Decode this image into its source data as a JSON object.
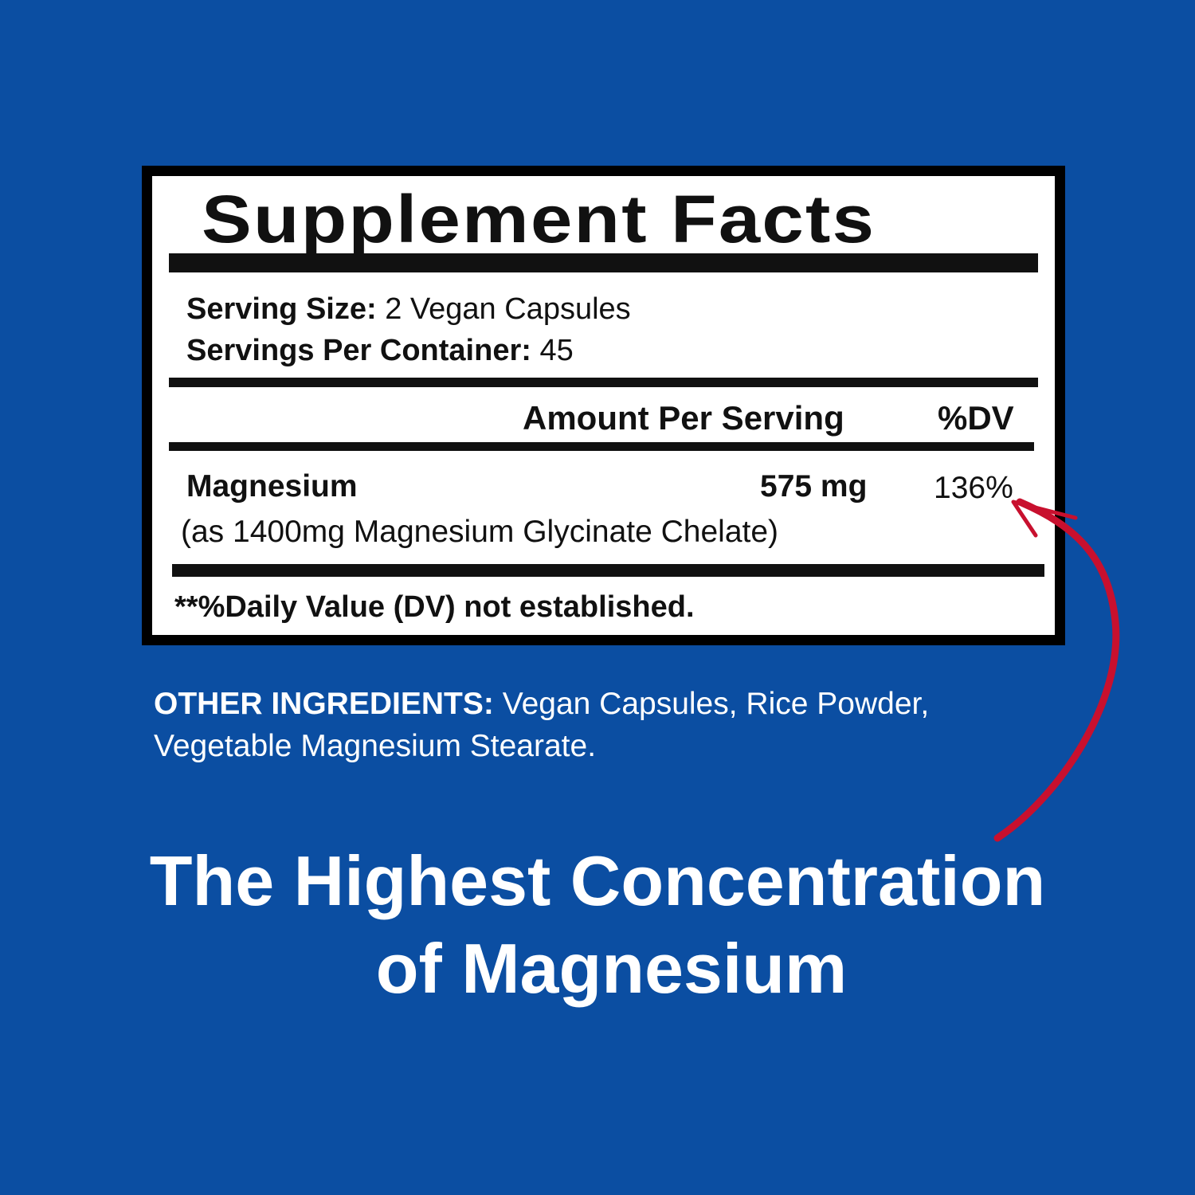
{
  "label": {
    "title": "Supplement Facts",
    "serving_size_label": "Serving Size:",
    "serving_size_value": "2 Vegan Capsules",
    "servings_per_container_label": "Servings Per Container:",
    "servings_per_container_value": "45",
    "header_amount": "Amount Per Serving",
    "header_dv": "%DV",
    "ingredient_name": "Magnesium",
    "ingredient_amount": "575 mg",
    "ingredient_dv": "136%",
    "ingredient_source": "(as 1400mg Magnesium Glycinate Chelate)",
    "footnote": "**%Daily Value (DV) not established."
  },
  "other_ingredients": {
    "label": "OTHER INGREDIENTS:",
    "line1": "Vegan Capsules, Rice Powder,",
    "line2": "Vegetable Magnesium Stearate."
  },
  "headline": {
    "line1": "The Highest Concentration",
    "line2": "of Magnesium"
  },
  "colors": {
    "background": "#0b4ea2",
    "arrow": "#c8102e"
  },
  "icons": {
    "arrow": "curved-arrow-icon"
  }
}
